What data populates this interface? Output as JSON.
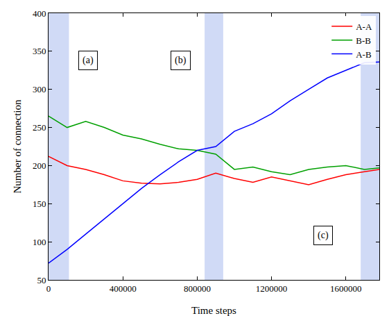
{
  "chart_data": {
    "type": "line",
    "x_label": "Time steps",
    "y_label": "Number of connection",
    "x": [
      0,
      100000,
      200000,
      300000,
      400000,
      500000,
      600000,
      700000,
      800000,
      900000,
      1000000,
      1100000,
      1200000,
      1300000,
      1400000,
      1500000,
      1600000,
      1700000,
      1780000
    ],
    "series": [
      {
        "name": "A-A",
        "color": "#ff0000",
        "values": [
          212,
          200,
          195,
          188,
          180,
          177,
          176,
          178,
          182,
          190,
          183,
          178,
          185,
          180,
          175,
          182,
          188,
          192,
          195
        ]
      },
      {
        "name": "B-B",
        "color": "#00a000",
        "values": [
          265,
          250,
          258,
          250,
          240,
          235,
          228,
          222,
          220,
          215,
          195,
          198,
          192,
          188,
          195,
          198,
          200,
          195,
          197
        ]
      },
      {
        "name": "A-B",
        "color": "#0000ff",
        "values": [
          72,
          90,
          110,
          130,
          150,
          170,
          188,
          205,
          220,
          225,
          245,
          255,
          268,
          285,
          300,
          315,
          325,
          335,
          336
        ]
      }
    ],
    "shaded_ranges": [
      [
        0,
        110000
      ],
      [
        840000,
        940000
      ],
      [
        1680000,
        1780000
      ]
    ],
    "annotations": [
      "(a)",
      "(b)",
      "(c)"
    ],
    "xlim": [
      0,
      1780000
    ],
    "xticks": [
      0,
      400000,
      800000,
      1200000,
      1600000
    ],
    "ylim": [
      50,
      400
    ],
    "yticks": [
      50,
      100,
      150,
      200,
      250,
      300,
      350,
      400
    ],
    "legend": "upper right",
    "grid": false
  }
}
